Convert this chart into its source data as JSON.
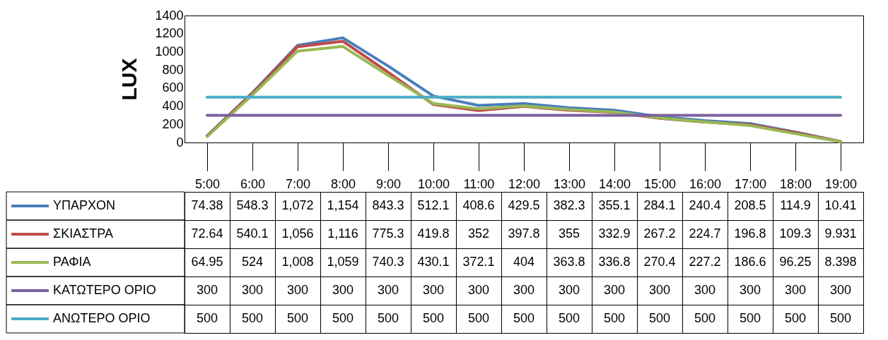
{
  "chart_data": {
    "type": "line",
    "ylabel": "LUX",
    "categories": [
      "5:00",
      "6:00",
      "7:00",
      "8:00",
      "9:00",
      "10:00",
      "11:00",
      "12:00",
      "13:00",
      "14:00",
      "15:00",
      "16:00",
      "17:00",
      "18:00",
      "19:00"
    ],
    "ylim": [
      0,
      1400
    ],
    "yticks": [
      0,
      200,
      400,
      600,
      800,
      1000,
      1200,
      1400
    ],
    "grid": false,
    "legend": "bottom left",
    "marker": "none",
    "line_style": "solid",
    "series": [
      {
        "name": "ΥΠΑΡΧΟΝ",
        "color": "#4a7ebb",
        "values": [
          74.38,
          548.3,
          1072,
          1154,
          843.3,
          512.1,
          408.6,
          429.5,
          382.3,
          355.1,
          284.1,
          240.4,
          208.5,
          114.9,
          10.41
        ],
        "value_labels": [
          "74.38",
          "548.3",
          "1,072",
          "1,154",
          "843.3",
          "512.1",
          "408.6",
          "429.5",
          "382.3",
          "355.1",
          "284.1",
          "240.4",
          "208.5",
          "114.9",
          "10.41"
        ]
      },
      {
        "name": "ΣΚΙΑΣΤΡΑ",
        "color": "#be4b48",
        "values": [
          72.64,
          540.1,
          1056,
          1116,
          775.3,
          419.8,
          352,
          397.8,
          355,
          332.9,
          267.2,
          224.7,
          196.8,
          109.3,
          9.931
        ],
        "value_labels": [
          "72.64",
          "540.1",
          "1,056",
          "1,116",
          "775.3",
          "419.8",
          "352",
          "397.8",
          "355",
          "332.9",
          "267.2",
          "224.7",
          "196.8",
          "109.3",
          "9.931"
        ]
      },
      {
        "name": "ΡΑΦΙΑ",
        "color": "#98b954",
        "values": [
          64.95,
          524,
          1008,
          1059,
          740.3,
          430.1,
          372.1,
          404,
          363.8,
          336.8,
          270.4,
          227.2,
          186.6,
          96.25,
          8.398
        ],
        "value_labels": [
          "64.95",
          "524",
          "1,008",
          "1,059",
          "740.3",
          "430.1",
          "372.1",
          "404",
          "363.8",
          "336.8",
          "270.4",
          "227.2",
          "186.6",
          "96.25",
          "8.398"
        ]
      },
      {
        "name": "ΚΑΤΩΤΕΡΟ ΟΡΙΟ",
        "color": "#7d60a0",
        "values": [
          300,
          300,
          300,
          300,
          300,
          300,
          300,
          300,
          300,
          300,
          300,
          300,
          300,
          300,
          300
        ],
        "value_labels": [
          "300",
          "300",
          "300",
          "300",
          "300",
          "300",
          "300",
          "300",
          "300",
          "300",
          "300",
          "300",
          "300",
          "300",
          "300"
        ]
      },
      {
        "name": "ΑΝΩΤΕΡΟ ΟΡΙΟ",
        "color": "#4bacc6",
        "values": [
          500,
          500,
          500,
          500,
          500,
          500,
          500,
          500,
          500,
          500,
          500,
          500,
          500,
          500,
          500
        ],
        "value_labels": [
          "500",
          "500",
          "500",
          "500",
          "500",
          "500",
          "500",
          "500",
          "500",
          "500",
          "500",
          "500",
          "500",
          "500",
          "500"
        ]
      }
    ]
  }
}
